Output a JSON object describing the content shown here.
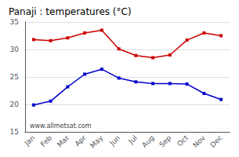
{
  "chart_data": {
    "type": "line",
    "title": "Panaji : temperatures (°C)",
    "categories": [
      "Jan",
      "Feb",
      "Mar",
      "Apr",
      "May",
      "Jun",
      "Jul",
      "Aug",
      "Sep",
      "Oct",
      "Nov",
      "Dec"
    ],
    "series": [
      {
        "color": "#cc0000",
        "values": [
          31.8,
          31.6,
          32.1,
          33.0,
          33.5,
          30.1,
          28.9,
          28.5,
          29.0,
          31.7,
          33.0,
          32.5
        ]
      },
      {
        "color": "#0000cc",
        "values": [
          19.9,
          20.6,
          23.2,
          25.5,
          26.4,
          24.8,
          24.1,
          23.8,
          23.8,
          23.7,
          22.0,
          20.9
        ]
      }
    ],
    "marker": "square",
    "ylim": [
      15,
      35
    ],
    "yticks": [
      15,
      20,
      25,
      30,
      35
    ],
    "grid": true,
    "annotations": [
      "www.allmetsat.com"
    ]
  }
}
